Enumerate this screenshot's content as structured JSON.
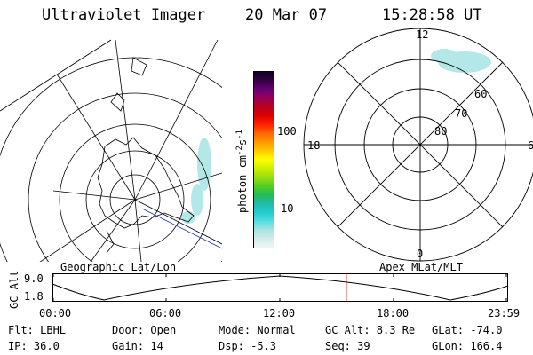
{
  "header": {
    "title": "Ultraviolet Imager",
    "date": "20 Mar 07",
    "time": "15:28:58 UT"
  },
  "left_panel": {
    "label": "Geographic Lat/Lon"
  },
  "colorbar": {
    "unit": "photon cm",
    "unit_exp1": "-2",
    "unit_mid": "s",
    "unit_exp2": "-1",
    "tick_100": "100",
    "tick_10": "10",
    "colors": [
      "#eef6f6",
      "#d4eaea",
      "#a8e4e4",
      "#55dede",
      "#22cccc",
      "#22bbaa",
      "#22bb55",
      "#55cc22",
      "#99dd11",
      "#ccee00",
      "#ffff00",
      "#ffcc00",
      "#ff9900",
      "#ff6600",
      "#ff2200",
      "#dd0000",
      "#bb0022",
      "#990055",
      "#660077",
      "#330044",
      "#110022"
    ]
  },
  "right_panel": {
    "label": "Apex  MLat/MLT",
    "mlt_12": "12",
    "mlt_18": "18",
    "mlt_6": "6",
    "mlt_0": "0",
    "lat_60": "60",
    "lat_70": "70",
    "lat_80": "80"
  },
  "altitude_plot": {
    "ylabel": "GC Alt",
    "y_top": "9.0",
    "y_bottom": "1.8",
    "x_ticks": [
      "00:00",
      "06:00",
      "12:00",
      "18:00",
      "23:59"
    ],
    "current_time_fraction": 0.645,
    "marker_color": "#dd0000"
  },
  "info": {
    "flt": "Flt: LBHL",
    "door": "Door: Open",
    "mode": "Mode: Normal",
    "gc_alt": "GC Alt: 8.3 Re",
    "glat": "GLat: -74.0",
    "ip": "IP: 36.0",
    "gain": "Gain: 14",
    "dsp": "Dsp:    -5.3",
    "seq": "Seq: 39",
    "glon": "GLon: 166.4"
  }
}
